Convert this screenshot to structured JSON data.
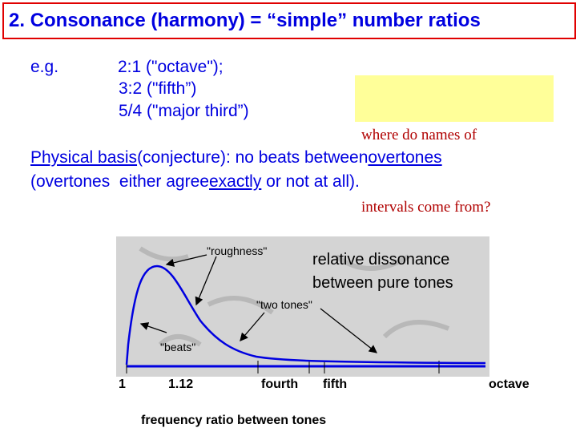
{
  "title": "2. Consonance (harmony) = “simple” number ratios",
  "examples": {
    "label": "e.g.",
    "items": [
      "2:1 (\"octave\");",
      "3:2 (\"fifth”)",
      "5/4 (\"major third”)"
    ]
  },
  "question": [
    "where do names of",
    "intervals come from?"
  ],
  "basis": {
    "line1": [
      "Physical basis",
      "(conjecture): no beats between",
      "overtones"
    ],
    "line2": [
      "(overtones  either agree",
      "exactly",
      " or not at all)."
    ]
  },
  "figure": {
    "labels": {
      "roughness": "\"roughness\"",
      "dissonance": [
        "relative dissonance",
        "between pure tones"
      ],
      "two_tones": "\"two tones\"",
      "beats": "\"beats\""
    },
    "axis_labels": [
      "1",
      "1.12",
      "fourth",
      "fifth",
      "octave"
    ],
    "caption": "frequency ratio between  tones"
  }
}
